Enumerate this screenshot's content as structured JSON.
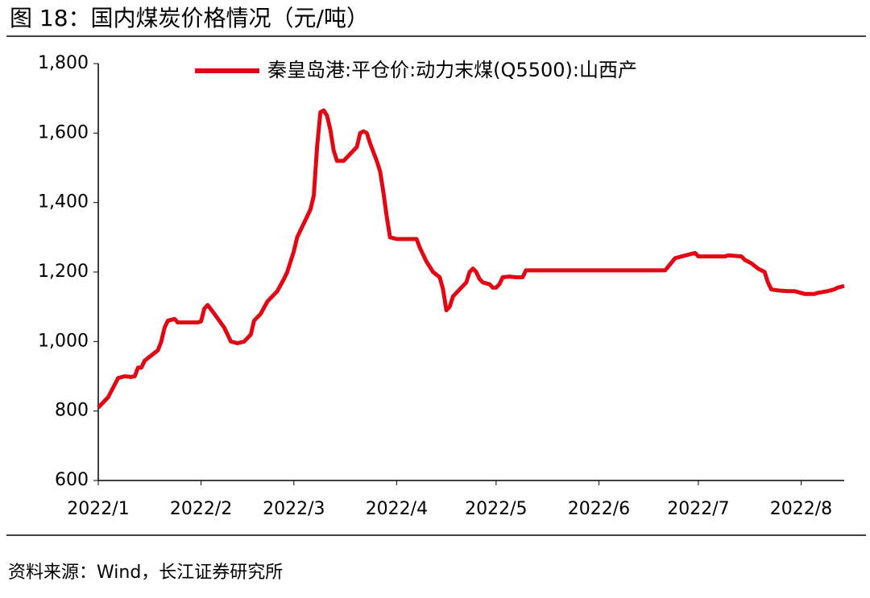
{
  "header": {
    "title": "图 18：国内煤炭价格情况（元/吨）"
  },
  "chart_data": {
    "type": "line",
    "x": [
      0,
      3,
      6,
      8,
      10,
      11,
      12,
      13,
      14,
      16,
      18,
      19,
      20,
      21,
      23,
      24,
      26,
      30,
      31,
      32,
      33,
      35,
      38,
      39,
      40,
      42,
      44,
      46,
      47,
      49,
      51,
      54,
      56,
      57,
      59,
      60,
      62,
      64,
      65,
      66,
      67,
      68,
      69,
      70,
      71,
      72,
      74,
      76,
      78,
      79,
      80,
      81,
      82,
      84,
      85,
      86,
      87,
      88,
      90,
      94,
      96,
      97,
      99,
      101,
      103,
      104,
      105,
      106,
      107,
      109,
      111,
      112,
      113,
      114,
      115,
      116,
      118,
      119,
      120,
      121,
      122,
      124,
      126,
      128,
      129,
      135,
      150,
      171,
      174,
      176,
      178,
      180,
      181,
      186,
      189,
      190,
      194,
      195,
      197,
      199,
      201,
      202,
      203,
      205,
      208,
      210,
      212,
      213,
      216,
      217,
      220,
      222,
      223,
      225
    ],
    "series": [
      {
        "name": "秦皇岛港:平仓价:动力末煤(Q5500):山西产",
        "color": "#e30613",
        "values": [
          810,
          840,
          895,
          900,
          898,
          900,
          925,
          925,
          945,
          960,
          975,
          1000,
          1040,
          1060,
          1065,
          1055,
          1055,
          1055,
          1058,
          1095,
          1105,
          1080,
          1040,
          1020,
          1000,
          995,
          1000,
          1020,
          1060,
          1080,
          1115,
          1145,
          1180,
          1200,
          1260,
          1300,
          1340,
          1380,
          1420,
          1560,
          1660,
          1665,
          1650,
          1610,
          1550,
          1520,
          1520,
          1540,
          1560,
          1600,
          1605,
          1600,
          1570,
          1520,
          1490,
          1430,
          1360,
          1300,
          1295,
          1295,
          1295,
          1270,
          1230,
          1200,
          1185,
          1150,
          1090,
          1100,
          1130,
          1150,
          1170,
          1200,
          1210,
          1200,
          1180,
          1170,
          1165,
          1155,
          1155,
          1165,
          1185,
          1187,
          1185,
          1185,
          1205,
          1205,
          1205,
          1205,
          1240,
          1245,
          1250,
          1255,
          1245,
          1245,
          1245,
          1248,
          1245,
          1235,
          1225,
          1210,
          1200,
          1170,
          1150,
          1147,
          1145,
          1145,
          1140,
          1137,
          1137,
          1140,
          1145,
          1150,
          1155,
          1160
        ]
      }
    ],
    "xlim": [
      0,
      225
    ],
    "xticks": [
      {
        "value": 0,
        "label": "2022/1"
      },
      {
        "value": 31,
        "label": "2022/2"
      },
      {
        "value": 59,
        "label": "2022/3"
      },
      {
        "value": 90,
        "label": "2022/4"
      },
      {
        "value": 120,
        "label": "2022/5"
      },
      {
        "value": 151,
        "label": "2022/6"
      },
      {
        "value": 181,
        "label": "2022/7"
      },
      {
        "value": 212,
        "label": "2022/8"
      }
    ],
    "ylim": [
      600,
      1800
    ],
    "yticks": [
      600,
      800,
      {
        "value": 1000,
        "label": "1,000"
      },
      {
        "value": 1200,
        "label": "1,200"
      },
      {
        "value": 1400,
        "label": "1,400"
      },
      {
        "value": 1600,
        "label": "1,600"
      },
      {
        "value": 1800,
        "label": "1,800"
      }
    ]
  },
  "footer": {
    "source": "资料来源：Wind，长江证券研究所"
  }
}
